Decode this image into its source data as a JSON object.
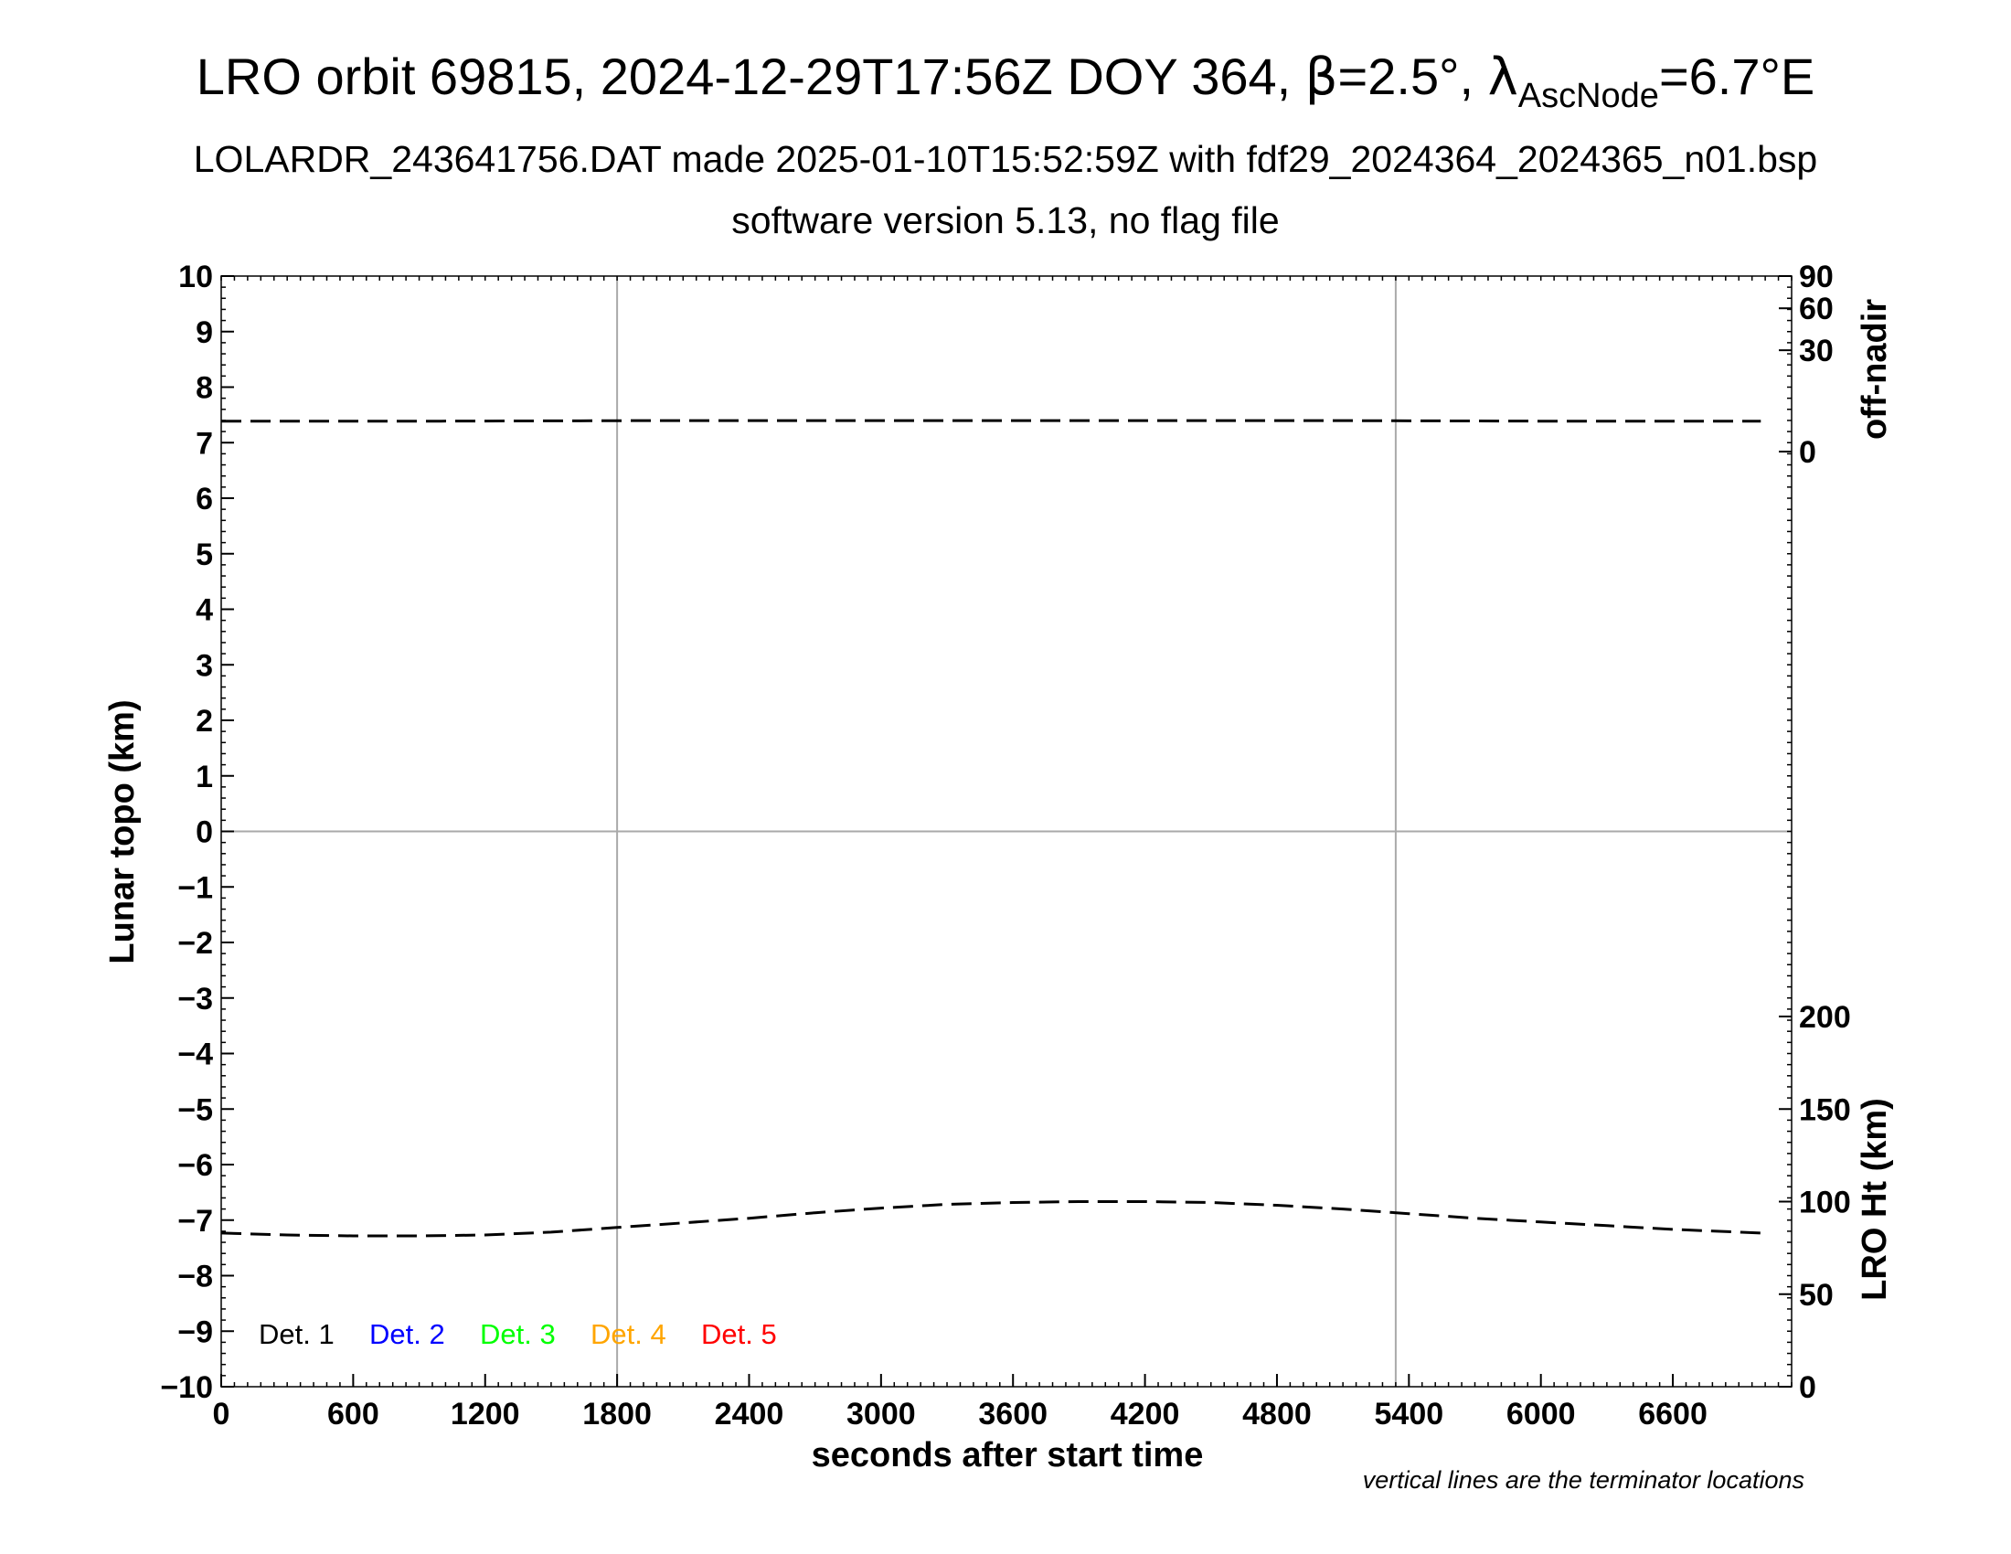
{
  "chart_data": {
    "type": "line",
    "title_parts": {
      "prefix": "LRO orbit 69815, 2024-12-29T17:56Z DOY 364, ",
      "beta_symbol": "β",
      "beta_value": "=2.5°, ",
      "lambda_symbol": "λ",
      "lambda_subscript": "AscNode",
      "lambda_value": "=6.7°E"
    },
    "subtitle": "LOLARDR_243641756.DAT made 2025-01-10T15:52:59Z with fdf29_2024364_2024365_n01.bsp",
    "subtitle2": "software version 5.13, no flag file",
    "xlabel": "seconds after start time",
    "ylabel": "Lunar topo (km)",
    "y2label_top": "off-nadir",
    "y2label_bottom": "LRO Ht (km)",
    "footnote": "vertical lines are the terminator locations",
    "xlim": [
      0,
      7140
    ],
    "ylim": [
      -10,
      10
    ],
    "x_ticks": [
      "0",
      "600",
      "1200",
      "1800",
      "2400",
      "3000",
      "3600",
      "4200",
      "4800",
      "5400",
      "6000",
      "6600"
    ],
    "y_ticks": [
      "10",
      "9",
      "8",
      "7",
      "6",
      "5",
      "4",
      "3",
      "2",
      "1",
      "0",
      "−1",
      "−2",
      "−3",
      "−4",
      "−5",
      "−6",
      "−7",
      "−8",
      "−9",
      "−10"
    ],
    "offnadir_ticks": [
      {
        "label": "90",
        "value": 90
      },
      {
        "label": "60",
        "value": 60
      },
      {
        "label": "30",
        "value": 30
      },
      {
        "label": "0",
        "value": 0
      }
    ],
    "height_ticks": [
      {
        "label": "200",
        "value": 200
      },
      {
        "label": "150",
        "value": 150
      },
      {
        "label": "100",
        "value": 100
      },
      {
        "label": "50",
        "value": 50
      },
      {
        "label": "0",
        "value": 0
      }
    ],
    "terminators": [
      1800,
      5340
    ],
    "grid": "zero line and terminator lines",
    "legend": {
      "position": "bottom-left",
      "entries": [
        {
          "label": "Det. 1",
          "color": "#000000"
        },
        {
          "label": "Det. 2",
          "color": "#0000ff"
        },
        {
          "label": "Det. 3",
          "color": "#00ff00"
        },
        {
          "label": "Det. 4",
          "color": "#ffa500"
        },
        {
          "label": "Det. 5",
          "color": "#ff0000"
        }
      ]
    },
    "series": [
      {
        "name": "off-nadir",
        "axis": "off-nadir",
        "style": "dashed",
        "x": [
          0,
          1000,
          2000,
          3000,
          4000,
          5000,
          6000,
          7000
        ],
        "y": [
          2.7,
          2.7,
          2.8,
          2.8,
          2.8,
          2.8,
          2.7,
          2.7
        ]
      },
      {
        "name": "LRO Ht",
        "axis": "LRO Ht (km)",
        "style": "dashed",
        "x": [
          0,
          300,
          600,
          900,
          1200,
          1500,
          1800,
          2100,
          2400,
          2700,
          3000,
          3300,
          3600,
          3900,
          4200,
          4500,
          4800,
          5100,
          5400,
          5700,
          6000,
          6300,
          6600,
          6900,
          7000
        ],
        "y": [
          83,
          82,
          81.5,
          81.5,
          82,
          83.5,
          86,
          88.5,
          91,
          94,
          96.5,
          98.5,
          99.5,
          100,
          100,
          99.5,
          98,
          96,
          93.5,
          91,
          89,
          87,
          85,
          83.5,
          83
        ]
      }
    ]
  }
}
